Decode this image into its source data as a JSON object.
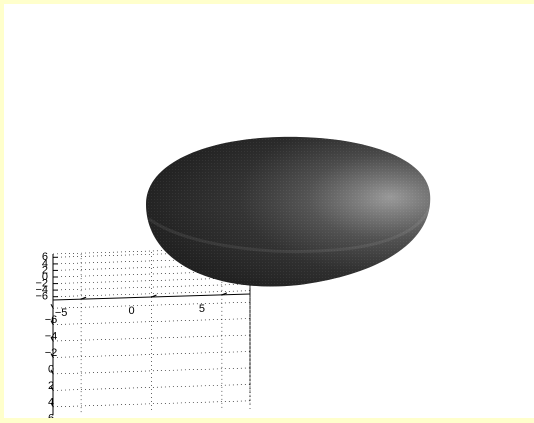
{
  "figure": {
    "background_color": "#ffffcc",
    "axes_background": "#ffffff"
  },
  "chart_data": {
    "type": "surface3d",
    "surface": "ellipsoid",
    "title": "",
    "xlabel": "",
    "ylabel": "",
    "zlabel": "",
    "center": [
      0,
      0,
      0
    ],
    "semi_axes": {
      "x": 5,
      "y": 5,
      "z": 2.5
    },
    "xlim": [
      -7,
      7
    ],
    "ylim": [
      -7,
      7
    ],
    "zlim": [
      -7,
      7
    ],
    "x_ticks": [
      "-6",
      "-4",
      "-2",
      "0",
      "2",
      "4",
      "6"
    ],
    "y_ticks": [
      "-5",
      "0",
      "5"
    ],
    "z_ticks": [
      "-6",
      "-4",
      "-2",
      "0",
      "2",
      "4",
      "6"
    ],
    "grid": true,
    "box": false,
    "shading": "interp",
    "colormap": "gray",
    "lighting": "right"
  }
}
